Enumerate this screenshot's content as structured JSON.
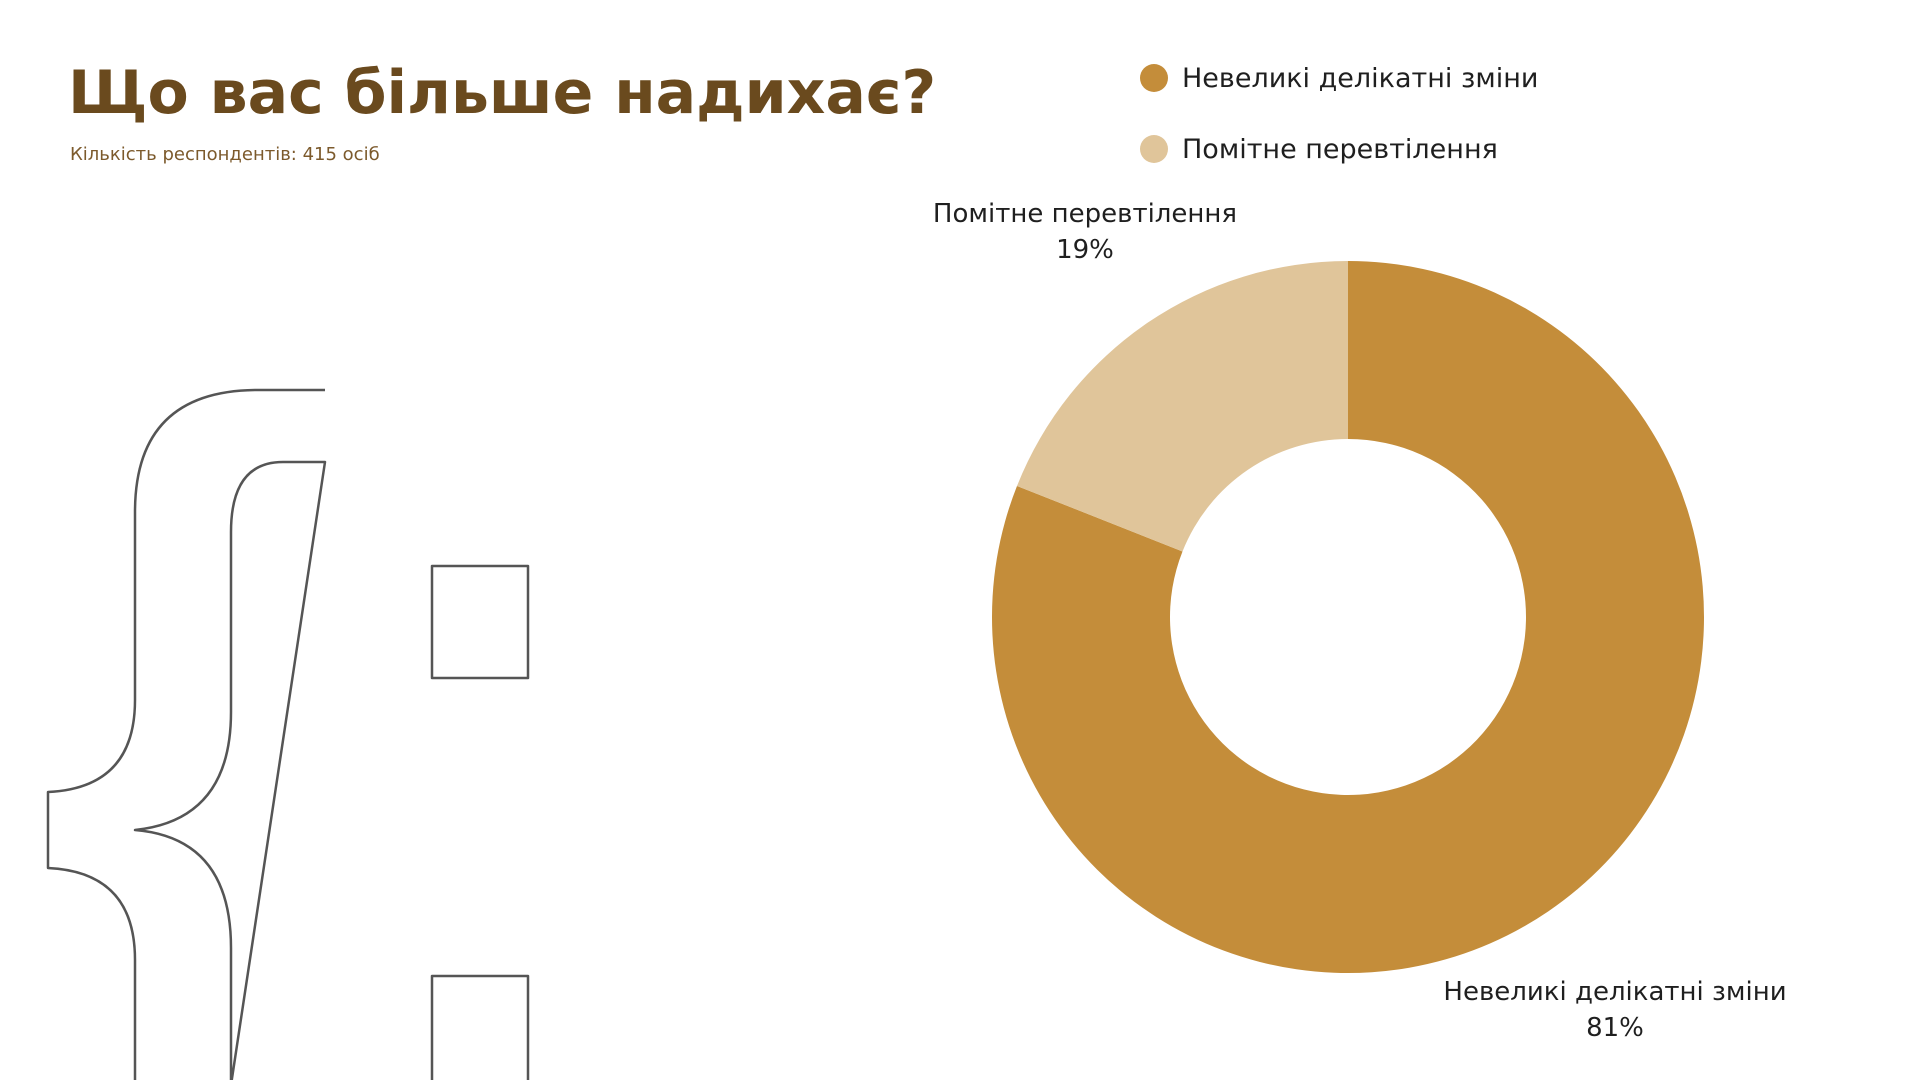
{
  "title": "Що вас більше надихає?",
  "subtitle": "Кількість респондентів: 415 осіб",
  "colors": {
    "title": "#6a4a1e",
    "subtitle": "#7c5a2c",
    "slice_1": "#c48d3a",
    "slice_2": "#e0c59a",
    "decor_stroke": "#555555"
  },
  "chart_data": {
    "type": "pie",
    "donut": true,
    "categories": [
      "Невеликі делікатні зміни",
      "Помітне перевтілення"
    ],
    "values": [
      81,
      19
    ],
    "value_labels": [
      "81%",
      "19%"
    ],
    "colors": [
      "#c48d3a",
      "#e0c59a"
    ],
    "legend": {
      "placement": "top-right",
      "items": [
        "Невеликі делікатні зміни",
        "Помітне перевтілення"
      ]
    }
  },
  "decoration": {
    "icon": "curly-brace-glyph"
  }
}
